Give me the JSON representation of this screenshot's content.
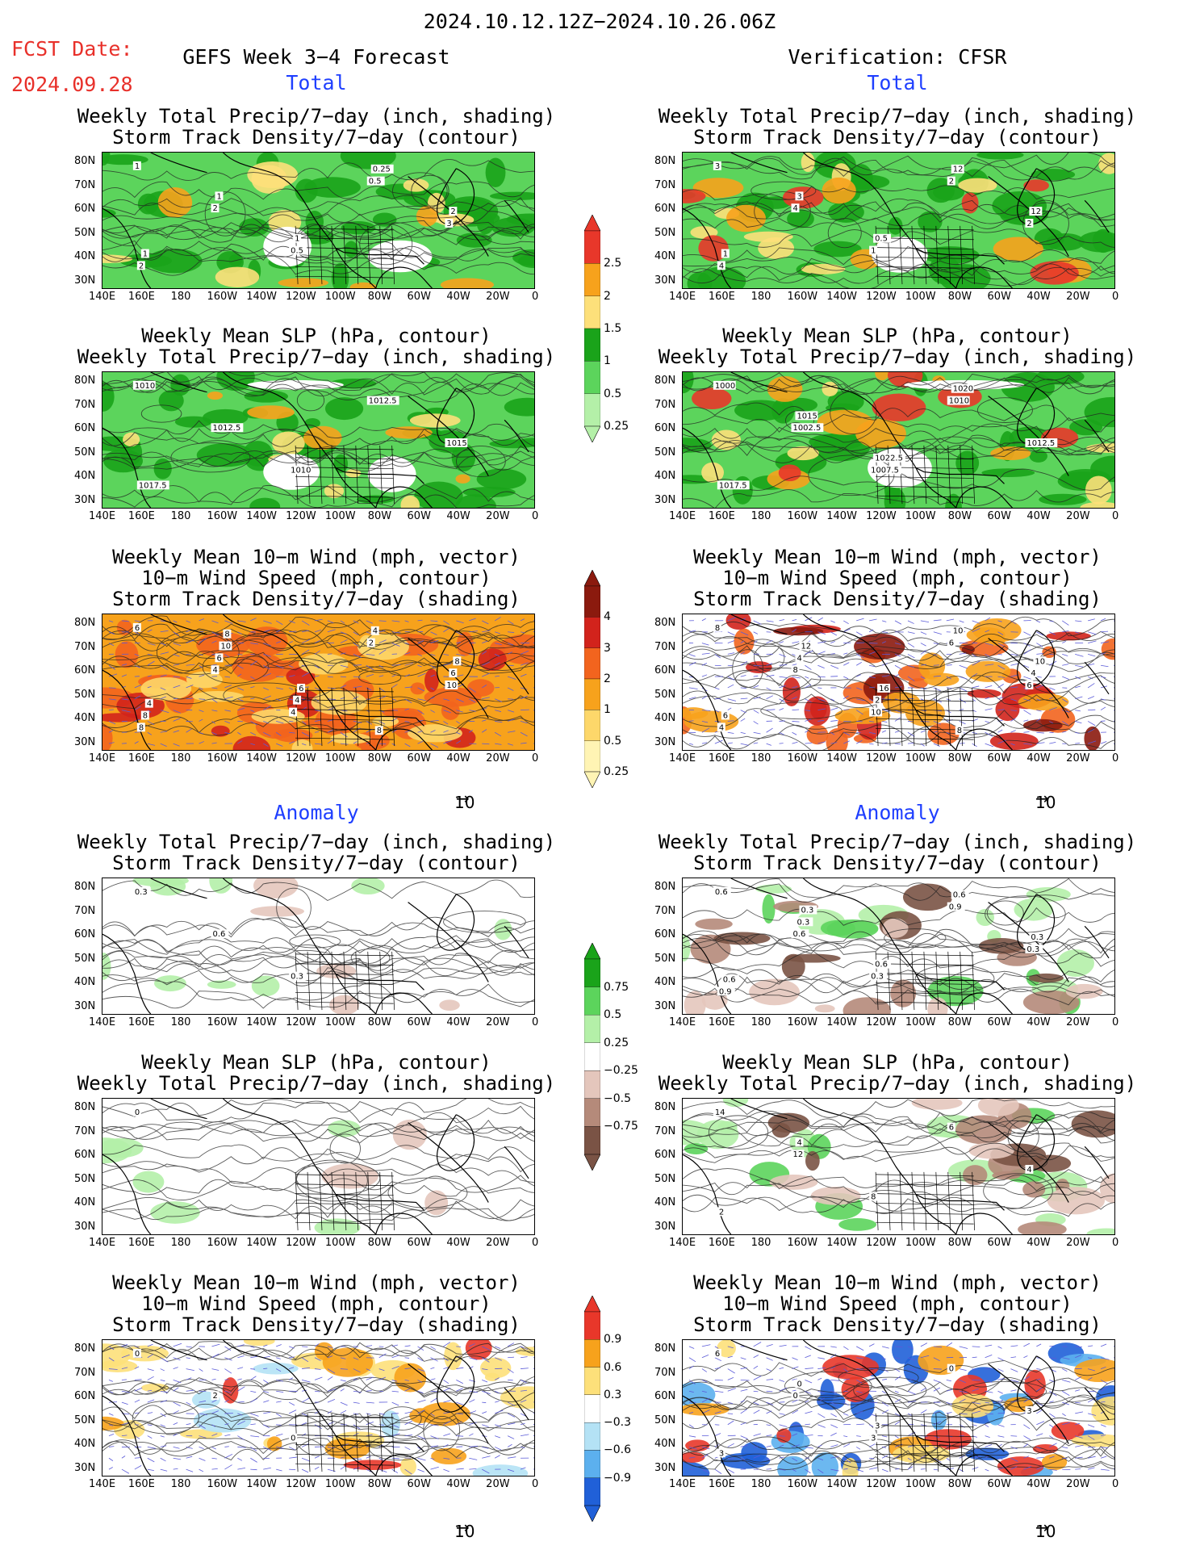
{
  "header": {
    "date_range": "2024.10.12.12Z−2024.10.26.06Z",
    "fcst_label": "FCST Date:",
    "fcst_date": "2024.09.28",
    "left_title": "GEFS Week 3−4 Forecast",
    "right_title": "Verification: CFSR",
    "total_label": "Total",
    "anomaly_label": "Anomaly"
  },
  "panels": [
    {
      "id": "p1",
      "l1": "Weekly Total Precip/7−day (inch, shading)",
      "l2": "Storm Track Density/7−day (contour)"
    },
    {
      "id": "p2",
      "l1": "Weekly Total Precip/7−day (inch, shading)",
      "l2": "Storm Track Density/7−day (contour)"
    },
    {
      "id": "p3",
      "l1": "Weekly Mean SLP (hPa, contour)",
      "l2": "Weekly Total Precip/7−day (inch, shading)"
    },
    {
      "id": "p4",
      "l1": "Weekly Mean SLP (hPa, contour)",
      "l2": "Weekly Total Precip/7−day (inch, shading)"
    },
    {
      "id": "p5",
      "l1": "Weekly Mean 10−m Wind (mph, vector)",
      "l2": "10−m Wind Speed (mph, contour)",
      "l3": "Storm Track Density/7−day (shading)"
    },
    {
      "id": "p6",
      "l1": "Weekly Mean 10−m Wind (mph, vector)",
      "l2": "10−m Wind Speed (mph, contour)",
      "l3": "Storm Track Density/7−day (shading)"
    },
    {
      "id": "p7",
      "l1": "Weekly Total Precip/7−day (inch, shading)",
      "l2": "Storm Track Density/7−day (contour)"
    },
    {
      "id": "p8",
      "l1": "Weekly Total Precip/7−day (inch, shading)",
      "l2": "Storm Track Density/7−day (contour)"
    },
    {
      "id": "p9",
      "l1": "Weekly Mean SLP (hPa, contour)",
      "l2": "Weekly Total Precip/7−day (inch, shading)"
    },
    {
      "id": "p10",
      "l1": "Weekly Mean SLP (hPa, contour)",
      "l2": "Weekly Total Precip/7−day (inch, shading)"
    },
    {
      "id": "p11",
      "l1": "Weekly Mean 10−m Wind (mph, vector)",
      "l2": "10−m Wind Speed (mph, contour)",
      "l3": "Storm Track Density/7−day (shading)"
    },
    {
      "id": "p12",
      "l1": "Weekly Mean 10−m Wind (mph, vector)",
      "l2": "10−m Wind Speed (mph, contour)",
      "l3": "Storm Track Density/7−day (shading)"
    }
  ],
  "lat_labels": [
    "80N",
    "70N",
    "60N",
    "50N",
    "40N",
    "30N"
  ],
  "lon_labels": [
    "140E",
    "160E",
    "180",
    "160W",
    "140W",
    "120W",
    "100W",
    "80W",
    "60W",
    "40W",
    "20W",
    "0"
  ],
  "colorbars": {
    "precip": {
      "labels": [
        "2.5",
        "2",
        "1.5",
        "1",
        "0.5",
        "0.25"
      ],
      "colors": [
        "#e8372a",
        "#f7a21c",
        "#fde07a",
        "#1aa31a",
        "#5cd45c",
        "#b4f0a8"
      ]
    },
    "track": {
      "labels": [
        "4",
        "3",
        "2",
        "1",
        "0.5",
        "0.25"
      ],
      "colors": [
        "#8b1a0e",
        "#d2231c",
        "#f2641e",
        "#f7a21c",
        "#fdd76a",
        "#fff4b4"
      ]
    },
    "precip_anom": {
      "labels": [
        "0.75",
        "0.5",
        "0.25",
        "−0.25",
        "−0.5",
        "−0.75"
      ],
      "colors": [
        "#1aa31a",
        "#5cd45c",
        "#b4f0a8",
        "#ffffff",
        "#e4c6bc",
        "#b58a7a",
        "#7a5345"
      ]
    },
    "track_anom": {
      "labels": [
        "0.9",
        "0.6",
        "0.3",
        "−0.3",
        "−0.6",
        "−0.9"
      ],
      "colors": [
        "#e8372a",
        "#f7a21c",
        "#fde07a",
        "#ffffff",
        "#b4e2f5",
        "#5cb0ee",
        "#2060d8"
      ]
    }
  },
  "vector_ref": "10",
  "contour_labels": {
    "p1": [
      "1",
      "2",
      "0.5",
      "0.5",
      "3",
      "2",
      "1",
      "1",
      "0.25",
      "2",
      "1"
    ],
    "p2": [
      "3",
      "4",
      "1",
      "2",
      "2",
      "4",
      "3",
      "0.5",
      "12",
      "12",
      "1"
    ],
    "p3": [
      "1010",
      "1012.5",
      "1010",
      "1012.5",
      "1015",
      "1017.5"
    ],
    "p4": [
      "1000",
      "1002.5",
      "1007.5",
      "1010",
      "1012.5",
      "1017.5",
      "1015",
      "1022.5",
      "1020"
    ],
    "p5": [
      "6",
      "4",
      "4",
      "2",
      "10",
      "8",
      "6",
      "4",
      "4",
      "6",
      "8",
      "10",
      "6",
      "8",
      "8",
      "4",
      "8"
    ],
    "p6": [
      "8",
      "8",
      "10",
      "6",
      "6",
      "4",
      "4",
      "2",
      "10",
      "4",
      "6",
      "12",
      "16",
      "8",
      "10"
    ],
    "p7": [
      "0.3",
      "0.6",
      "0.3"
    ],
    "p8": [
      "0.6",
      "0.6",
      "0.3",
      "0.9",
      "0.3",
      "0.9",
      "0.3",
      "0.6",
      "0.6",
      "0.3",
      "0.6",
      "0.3"
    ],
    "p9": [
      "0"
    ],
    "p10": [
      "14",
      "12",
      "8",
      "6",
      "4",
      "2",
      "4"
    ],
    "p11": [
      "0",
      "2",
      "0"
    ],
    "p12": [
      "6",
      "0",
      "3",
      "0",
      "3",
      "3",
      "0",
      "3"
    ]
  }
}
